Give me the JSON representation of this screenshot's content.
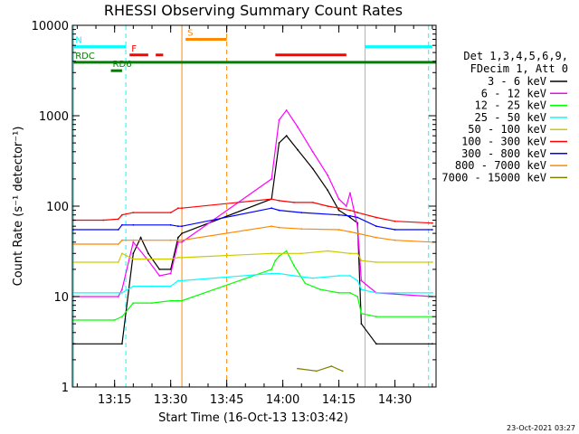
{
  "chart_data": {
    "type": "line",
    "title": "RHESSI Observing Summary Count Rates",
    "xlabel": "Start Time (16-Oct-13 13:03:42)",
    "ylabel": "Count Rate (s⁻¹ detector⁻¹)",
    "x_unit": "HH:MM (UT)",
    "xlim": [
      "13:03:42",
      "14:41:00"
    ],
    "x_ticks": [
      "13:15",
      "13:30",
      "13:45",
      "14:00",
      "14:15",
      "14:30"
    ],
    "ylim": [
      1,
      10000
    ],
    "y_scale": "log",
    "y_ticks": [
      "1",
      "10",
      "100",
      "1000",
      "10000"
    ],
    "grid": false,
    "legend_position": "right",
    "legend_header": [
      "Det 1,3,4,5,6,9,",
      "FDecim 1, Att 0"
    ],
    "timestamp": "23-Oct-2021 03:27",
    "series": [
      {
        "name": "3 - 6 keV",
        "color": "#000000",
        "x": [
          "13:04",
          "13:17",
          "13:20",
          "13:22",
          "13:24",
          "13:27",
          "13:30",
          "13:32",
          "13:33",
          "13:57",
          "13:59",
          "14:01",
          "14:04",
          "14:08",
          "14:12",
          "14:15",
          "14:18",
          "14:20",
          "14:21",
          "14:25",
          "14:40"
        ],
        "y": [
          3,
          3,
          30,
          45,
          30,
          20,
          20,
          45,
          50,
          120,
          500,
          600,
          420,
          260,
          150,
          90,
          75,
          65,
          5,
          3,
          3
        ]
      },
      {
        "name": "6 - 12 keV",
        "color": "#ff00ff",
        "x": [
          "13:04",
          "13:16",
          "13:17",
          "13:20",
          "13:24",
          "13:27",
          "13:30",
          "13:32",
          "13:33",
          "13:57",
          "13:59",
          "14:01",
          "14:04",
          "14:08",
          "14:12",
          "14:15",
          "14:17",
          "14:18",
          "14:20",
          "14:21",
          "14:25",
          "14:40"
        ],
        "y": [
          10,
          10,
          12,
          40,
          25,
          17,
          18,
          40,
          40,
          200,
          900,
          1150,
          750,
          400,
          220,
          120,
          100,
          140,
          60,
          15,
          11,
          10
        ]
      },
      {
        "name": "12 - 25 keV",
        "color": "#00ff00",
        "x": [
          "13:04",
          "13:15",
          "13:17",
          "13:20",
          "13:25",
          "13:30",
          "13:32",
          "13:33",
          "13:57",
          "13:58",
          "13:59",
          "14:01",
          "14:03",
          "14:06",
          "14:10",
          "14:15",
          "14:18",
          "14:20",
          "14:21",
          "14:25",
          "14:40"
        ],
        "y": [
          5.5,
          5.5,
          6,
          8.5,
          8.5,
          9,
          9,
          9,
          20,
          25,
          28,
          32,
          22,
          14,
          12,
          11,
          11,
          10,
          6.5,
          6,
          6
        ]
      },
      {
        "name": "25 - 50 keV",
        "color": "#00ffff",
        "x": [
          "13:04",
          "13:16",
          "13:17",
          "13:20",
          "13:25",
          "13:30",
          "13:32",
          "13:33",
          "13:57",
          "13:59",
          "14:03",
          "14:08",
          "14:15",
          "14:18",
          "14:20",
          "14:21",
          "14:25",
          "14:40"
        ],
        "y": [
          11,
          11,
          11,
          13,
          13,
          13,
          15,
          15,
          18,
          18,
          17,
          16,
          17,
          17,
          15,
          12,
          11,
          11
        ]
      },
      {
        "name": "50 - 100 keV",
        "color": "#cccc00",
        "x": [
          "13:04",
          "13:16",
          "13:17",
          "13:20",
          "13:30",
          "13:32",
          "13:33",
          "13:57",
          "13:59",
          "14:05",
          "14:12",
          "14:18",
          "14:20",
          "14:21",
          "14:25",
          "14:40"
        ],
        "y": [
          24,
          24,
          30,
          26,
          26,
          27,
          27,
          30,
          30,
          30,
          32,
          30,
          30,
          25,
          24,
          24
        ]
      },
      {
        "name": "100 - 300 keV",
        "color": "#ff0000",
        "x": [
          "13:04",
          "13:12",
          "13:16",
          "13:17",
          "13:20",
          "13:30",
          "13:32",
          "13:33",
          "13:57",
          "13:59",
          "14:03",
          "14:08",
          "14:12",
          "14:15",
          "14:18",
          "14:20",
          "14:25",
          "14:30",
          "14:40"
        ],
        "y": [
          70,
          70,
          72,
          80,
          85,
          85,
          95,
          95,
          120,
          115,
          110,
          110,
          100,
          95,
          90,
          85,
          75,
          68,
          65
        ]
      },
      {
        "name": "300 - 800 keV",
        "color": "#0000ff",
        "x": [
          "13:04",
          "13:16",
          "13:17",
          "13:20",
          "13:30",
          "13:32",
          "13:33",
          "13:57",
          "13:59",
          "14:05",
          "14:15",
          "14:18",
          "14:20",
          "14:25",
          "14:30",
          "14:40"
        ],
        "y": [
          55,
          55,
          62,
          62,
          62,
          60,
          60,
          95,
          90,
          85,
          80,
          78,
          75,
          60,
          55,
          55
        ]
      },
      {
        "name": "800 - 7000 keV",
        "color": "#ff8800",
        "x": [
          "13:04",
          "13:16",
          "13:17",
          "13:20",
          "13:30",
          "13:32",
          "13:33",
          "13:57",
          "13:59",
          "14:05",
          "14:15",
          "14:18",
          "14:20",
          "14:25",
          "14:30",
          "14:40"
        ],
        "y": [
          38,
          38,
          42,
          42,
          42,
          42,
          42,
          60,
          58,
          56,
          55,
          52,
          50,
          45,
          42,
          40
        ]
      },
      {
        "name": "7000 - 15000 keV",
        "color": "#808000",
        "x": [
          "14:04",
          "14:09",
          "14:13",
          "14:16"
        ],
        "y": [
          1.6,
          1.5,
          1.7,
          1.5
        ]
      }
    ],
    "flag_bars": [
      {
        "label": "N",
        "color": "#00ffff",
        "y": 5800,
        "segments": [
          [
            "13:04",
            "13:18"
          ],
          [
            "14:22",
            "14:40"
          ]
        ]
      },
      {
        "label": "F",
        "color": "#ff0000",
        "y": 4700,
        "segments": [
          [
            "13:19",
            "13:24"
          ],
          [
            "13:26",
            "13:28"
          ],
          [
            "13:58",
            "14:17"
          ]
        ]
      },
      {
        "label": "S",
        "color": "#ff8800",
        "y": 7000,
        "segments": [
          [
            "13:34",
            "13:45"
          ]
        ]
      },
      {
        "label": "RDC",
        "color": "#008000",
        "y": 3900,
        "segments": [
          [
            "13:04",
            "14:41"
          ]
        ]
      },
      {
        "label": "RD6",
        "color": "#008000",
        "y": 3150,
        "segments": [
          [
            "13:14",
            "13:17"
          ]
        ]
      }
    ],
    "vertical_markers": [
      {
        "x": "13:04",
        "color": "#00ffff",
        "style": "solid"
      },
      {
        "x": "13:18",
        "color": "#00ffff",
        "style": "dashed"
      },
      {
        "x": "13:33",
        "color": "#ff8800",
        "style": "solid"
      },
      {
        "x": "13:45",
        "color": "#ff8800",
        "style": "dashed"
      },
      {
        "x": "14:22",
        "color": "#00ffff",
        "style": "solid"
      },
      {
        "x": "14:39",
        "color": "#00ffff",
        "style": "dashed"
      }
    ]
  }
}
